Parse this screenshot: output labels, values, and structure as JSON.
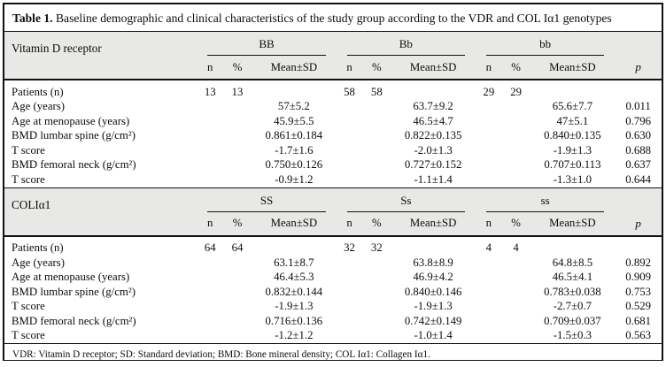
{
  "title": {
    "label": "Table 1.",
    "text": " Baseline demographic and clinical characteristics of the study group according to the VDR and COL Iα1 genotypes"
  },
  "colors": {
    "header_bg": "#e8e8e6",
    "body_bg": "#ffffff",
    "border": "#111111"
  },
  "column_headers": {
    "n": "n",
    "percent": "%",
    "mean_sd": "Mean±SD",
    "p": "p"
  },
  "sections": [
    {
      "name": "Vitamin D receptor",
      "genotypes": [
        "BB",
        "Bb",
        "bb"
      ],
      "rows": [
        {
          "label": "Patients (n)",
          "cells": [
            [
              "13",
              "13",
              ""
            ],
            [
              "58",
              "58",
              ""
            ],
            [
              "29",
              "29",
              ""
            ]
          ],
          "p": ""
        },
        {
          "label": "Age (years)",
          "cells": [
            [
              "",
              "",
              "57±5.2"
            ],
            [
              "",
              "",
              "63.7±9.2"
            ],
            [
              "",
              "",
              "65.6±7.7"
            ]
          ],
          "p": "0.011"
        },
        {
          "label": "Age at menopause (years)",
          "cells": [
            [
              "",
              "",
              "45.9±5.5"
            ],
            [
              "",
              "",
              "46.5±4.7"
            ],
            [
              "",
              "",
              "47±5.1"
            ]
          ],
          "p": "0.796"
        },
        {
          "label": "BMD lumbar spine (g/cm²)",
          "cells": [
            [
              "",
              "",
              "0.861±0.184"
            ],
            [
              "",
              "",
              "0.822±0.135"
            ],
            [
              "",
              "",
              "0.840±0.135"
            ]
          ],
          "p": "0.630"
        },
        {
          "label": "T score",
          "cells": [
            [
              "",
              "",
              "-1.7±1.6"
            ],
            [
              "",
              "",
              "-2.0±1.3"
            ],
            [
              "",
              "",
              "-1.9±1.3"
            ]
          ],
          "p": "0.688"
        },
        {
          "label": "BMD femoral neck (g/cm²)",
          "cells": [
            [
              "",
              "",
              "0.750±0.126"
            ],
            [
              "",
              "",
              "0.727±0.152"
            ],
            [
              "",
              "",
              "0.707±0.113"
            ]
          ],
          "p": "0.637"
        },
        {
          "label": "T score",
          "cells": [
            [
              "",
              "",
              "-0.9±1.2"
            ],
            [
              "",
              "",
              "-1.1±1.4"
            ],
            [
              "",
              "",
              "-1.3±1.0"
            ]
          ],
          "p": "0.644"
        }
      ]
    },
    {
      "name": "COLIα1",
      "genotypes": [
        "SS",
        "Ss",
        "ss"
      ],
      "rows": [
        {
          "label": "Patients (n)",
          "cells": [
            [
              "64",
              "64",
              ""
            ],
            [
              "32",
              "32",
              ""
            ],
            [
              "4",
              "4",
              ""
            ]
          ],
          "p": ""
        },
        {
          "label": "Age (years)",
          "cells": [
            [
              "",
              "",
              "63.1±8.7"
            ],
            [
              "",
              "",
              "63.8±8.9"
            ],
            [
              "",
              "",
              "64.8±8.5"
            ]
          ],
          "p": "0.892"
        },
        {
          "label": "Age at menopause (years)",
          "cells": [
            [
              "",
              "",
              "46.4±5.3"
            ],
            [
              "",
              "",
              "46.9±4.2"
            ],
            [
              "",
              "",
              "46.5±4.1"
            ]
          ],
          "p": "0.909"
        },
        {
          "label": "BMD lumbar spine (g/cm²)",
          "cells": [
            [
              "",
              "",
              "0.832±0.144"
            ],
            [
              "",
              "",
              "0.840±0.146"
            ],
            [
              "",
              "",
              "0.783±0.038"
            ]
          ],
          "p": "0.753"
        },
        {
          "label": "T score",
          "cells": [
            [
              "",
              "",
              "-1.9±1.3"
            ],
            [
              "",
              "",
              "-1.9±1.3"
            ],
            [
              "",
              "",
              "-2.7±0.7"
            ]
          ],
          "p": "0.529"
        },
        {
          "label": "BMD femoral neck (g/cm²)",
          "cells": [
            [
              "",
              "",
              "0.716±0.136"
            ],
            [
              "",
              "",
              "0.742±0.149"
            ],
            [
              "",
              "",
              "0.709±0.037"
            ]
          ],
          "p": "0.681"
        },
        {
          "label": "T score",
          "cells": [
            [
              "",
              "",
              "-1.2±1.2"
            ],
            [
              "",
              "",
              "-1.0±1.4"
            ],
            [
              "",
              "",
              "-1.5±0.3"
            ]
          ],
          "p": "0.563"
        }
      ]
    }
  ],
  "footnote": "VDR: Vitamin D receptor; SD: Standard deviation; BMD: Bone mineral density; COL Iα1: Collagen Iα1."
}
